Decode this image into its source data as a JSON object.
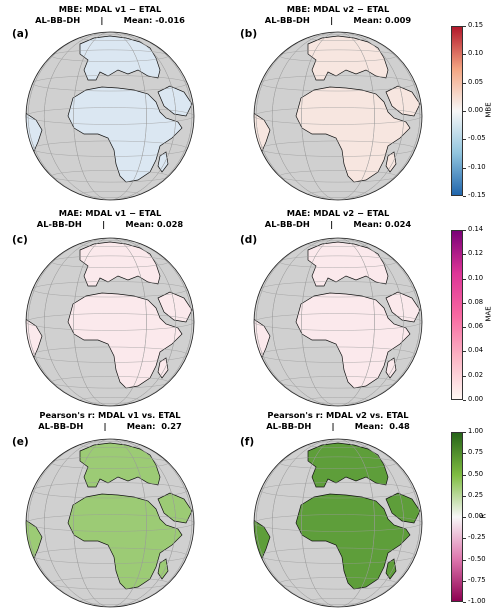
{
  "panels": [
    {
      "label": "(a)",
      "title": "MBE: MDAL v1 − ETAL",
      "subtitle": "AL-BB-DH       |       Mean: -0.016"
    },
    {
      "label": "(b)",
      "title": "MBE: MDAL v2 − ETAL",
      "subtitle": "AL-BB-DH       |       Mean: 0.009"
    },
    {
      "label": "(c)",
      "title": "MAE: MDAL v1 − ETAL",
      "subtitle": "AL-BB-DH       |       Mean: 0.028"
    },
    {
      "label": "(d)",
      "title": "MAE: MDAL v2 − ETAL",
      "subtitle": "AL-BB-DH       |       Mean: 0.024"
    },
    {
      "label": "(e)",
      "title": "Pearson's r: MDAL v1 vs. ETAL",
      "subtitle": "AL-BB-DH       |       Mean:  0.27"
    },
    {
      "label": "(f)",
      "title": "Pearson's r: MDAL v2 vs. ETAL",
      "subtitle": "AL-BB-DH       |       Mean:  0.48"
    }
  ],
  "colorbars": [
    {
      "label": "MBE",
      "ticks": [
        "0.15",
        "0.10",
        "0.05",
        "0.00",
        "-0.05",
        "-0.10",
        "-0.15"
      ],
      "colors": [
        "#b2182b",
        "#f4a582",
        "#f7f7f7",
        "#92c5de",
        "#2166ac"
      ]
    },
    {
      "label": "MAE",
      "ticks": [
        "0.14",
        "0.12",
        "0.10",
        "0.08",
        "0.06",
        "0.04",
        "0.02",
        "0.00"
      ],
      "colors": [
        "#7a0177",
        "#dd3497",
        "#f768a1",
        "#fbb4c4",
        "#fff7f3"
      ]
    },
    {
      "label": "R",
      "ticks": [
        "1.00",
        "0.75",
        "0.50",
        "0.25",
        "0.00",
        "-0.25",
        "-0.50",
        "-0.75",
        "-1.00"
      ],
      "colors": [
        "#276419",
        "#7fbc41",
        "#f7f7f7",
        "#de77ae",
        "#8e0152"
      ]
    }
  ],
  "map_style": {
    "ocean": "#d0d0d0",
    "land_mbe_v1": "#dbe7f2",
    "land_mbe_v2": "#f7e6e0",
    "land_mae": "#fbe9ec",
    "land_r_v1": "#9ccb75",
    "land_r_v2": "#5e9e3a"
  }
}
